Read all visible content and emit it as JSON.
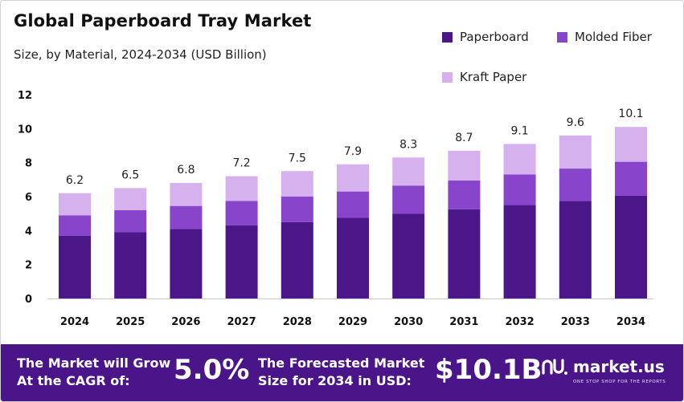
{
  "title": "Global Paperboard Tray Market",
  "subtitle": "Size, by Material, 2024-2034 (USD Billion)",
  "colors": {
    "paperboard": "#4b1688",
    "molded_fiber": "#8845cc",
    "kraft_paper": "#d5b1ee",
    "footer_bg": "#4a1589"
  },
  "chart_data": {
    "type": "bar",
    "stacked": true,
    "categories": [
      "2024",
      "2025",
      "2026",
      "2027",
      "2028",
      "2029",
      "2030",
      "2031",
      "2032",
      "2033",
      "2034"
    ],
    "series": [
      {
        "name": "Paperboard",
        "values": [
          3.7,
          3.9,
          4.1,
          4.3,
          4.5,
          4.75,
          5.0,
          5.25,
          5.5,
          5.75,
          6.05
        ]
      },
      {
        "name": "Molded Fiber",
        "values": [
          1.2,
          1.3,
          1.35,
          1.45,
          1.5,
          1.55,
          1.65,
          1.7,
          1.8,
          1.9,
          2.0
        ]
      },
      {
        "name": "Kraft Paper",
        "values": [
          1.3,
          1.3,
          1.35,
          1.45,
          1.5,
          1.6,
          1.65,
          1.75,
          1.8,
          1.95,
          2.05
        ]
      }
    ],
    "totals": [
      "6.2",
      "6.5",
      "6.8",
      "7.2",
      "7.5",
      "7.9",
      "8.3",
      "8.7",
      "9.1",
      "9.6",
      "10.1"
    ],
    "yticks": [
      "0",
      "2",
      "4",
      "6",
      "8",
      "10",
      "12"
    ],
    "ylim": [
      0,
      12
    ],
    "grid": false,
    "legend_position": "top-right"
  },
  "footer": {
    "cagr_text_1": "The Market will Grow",
    "cagr_text_2": "At the CAGR of:",
    "cagr_value": "5.0%",
    "forecast_text_1": "The Forecasted Market",
    "forecast_text_2": "Size for 2034 in USD:",
    "forecast_value": "$10.1B",
    "brand_name": "market.us",
    "brand_tagline": "ONE STOP SHOP FOR THE REPORTS"
  }
}
